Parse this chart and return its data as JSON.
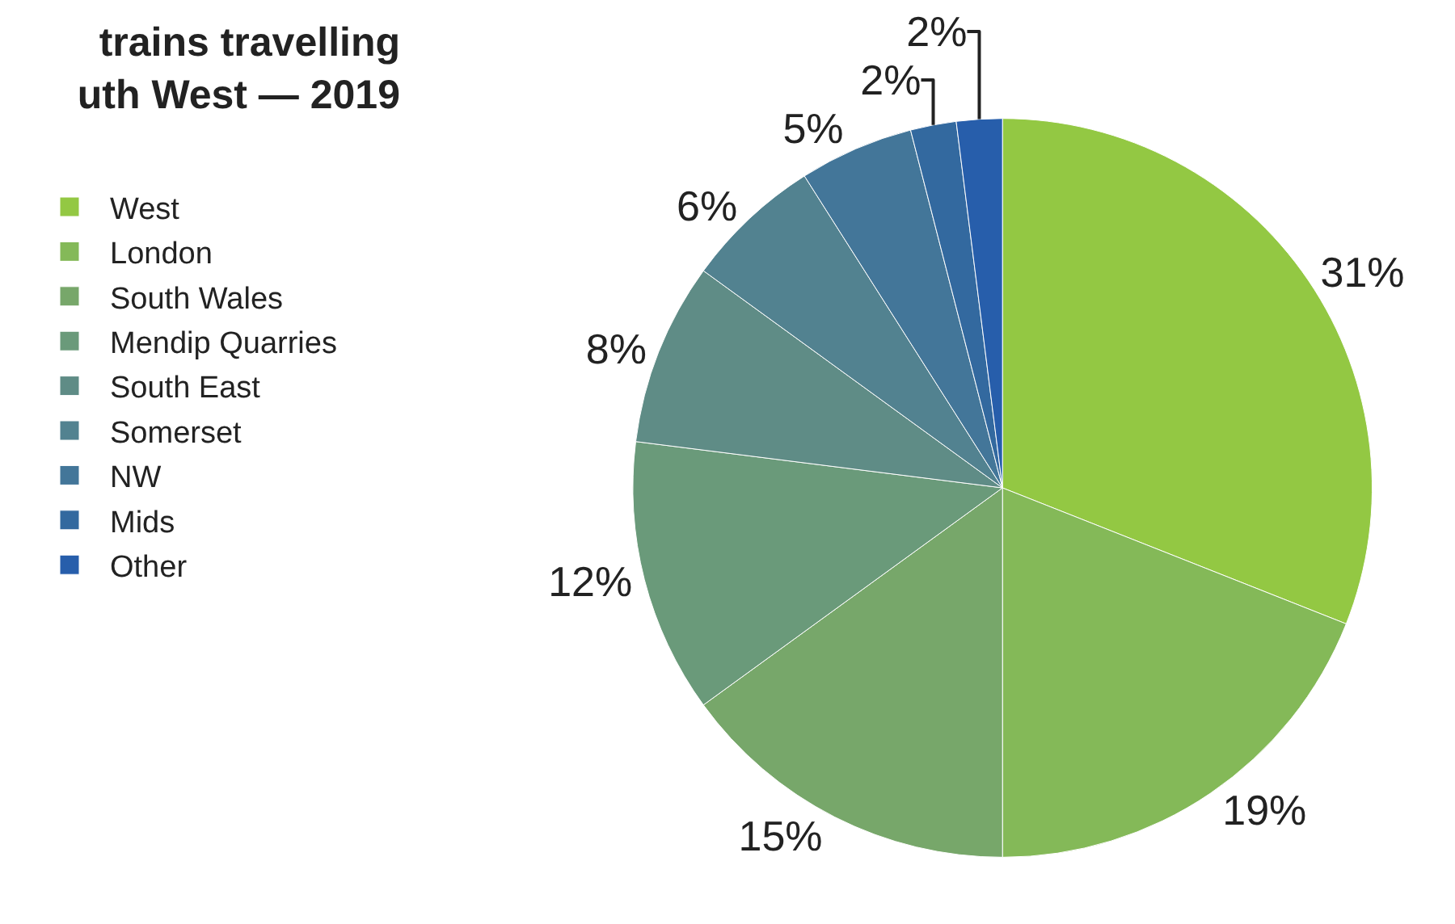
{
  "chart_data": {
    "type": "pie",
    "title": "trains travelling\nuth West — 2019",
    "categories": [
      "West",
      "London",
      "South Wales",
      "Mendip Quarries",
      "South East",
      "Somerset",
      "NW",
      "Mids",
      "Other"
    ],
    "values": [
      31,
      19,
      15,
      12,
      8,
      6,
      5,
      2,
      2
    ],
    "colors": [
      "#93c843",
      "#84b958",
      "#77a76a",
      "#6a9a7a",
      "#5f8c86",
      "#528290",
      "#437699",
      "#33699f",
      "#275eab"
    ],
    "value_labels": [
      "31%",
      "19%",
      "15%",
      "12%",
      "8%",
      "6%",
      "5%",
      "2%",
      "2%"
    ],
    "legend": "left"
  }
}
